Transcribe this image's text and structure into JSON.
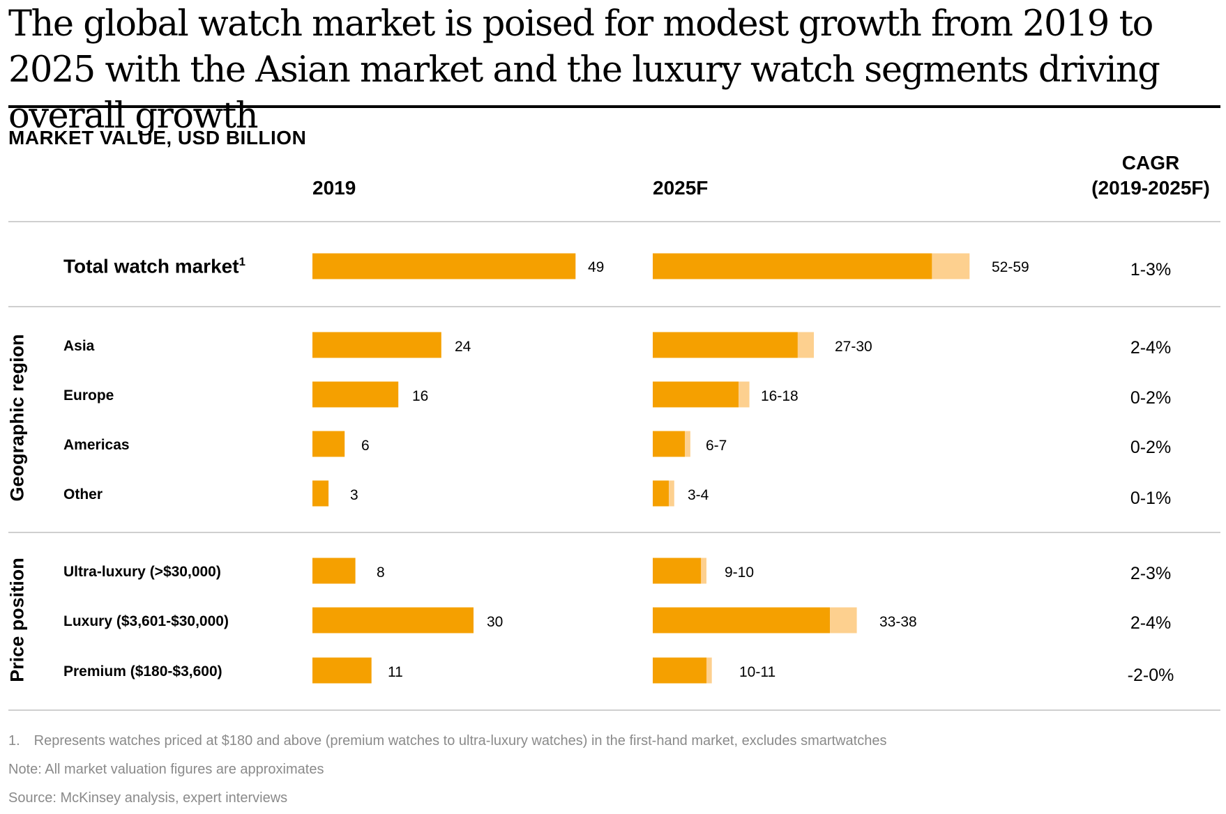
{
  "chart_data": {
    "type": "bar",
    "title": "The global watch market  is poised for modest growth from 2019 to 2025 with the Asian market and the luxury watch segments driving overall growth",
    "subtitle": "MARKET VALUE, USD BILLION",
    "columns": {
      "y2019": "2019",
      "y2025": "2025F",
      "cagr_line1": "CAGR",
      "cagr_line2": "(2019-2025F)"
    },
    "total": {
      "label": "Total watch market",
      "footnote_mark": "1",
      "v2019": 49,
      "v2019_label": "49",
      "low2025": 52,
      "high2025": 59,
      "v2025_label": "52-59",
      "cagr": "1-3%"
    },
    "groups": [
      {
        "label": "Geographic region",
        "rows": [
          {
            "label": "Asia",
            "v2019": 24,
            "v2019_label": "24",
            "low2025": 27,
            "high2025": 30,
            "v2025_label": "27-30",
            "cagr": "2-4%"
          },
          {
            "label": "Europe",
            "v2019": 16,
            "v2019_label": "16",
            "low2025": 16,
            "high2025": 18,
            "v2025_label": "16-18",
            "cagr": "0-2%"
          },
          {
            "label": "Americas",
            "v2019": 6,
            "v2019_label": "6",
            "low2025": 6,
            "high2025": 7,
            "v2025_label": "6-7",
            "cagr": "0-2%"
          },
          {
            "label": "Other",
            "v2019": 3,
            "v2019_label": "3",
            "low2025": 3,
            "high2025": 4,
            "v2025_label": "3-4",
            "cagr": "0-1%"
          }
        ]
      },
      {
        "label": "Price position",
        "rows": [
          {
            "label": "Ultra-luxury (>$30,000)",
            "v2019": 8,
            "v2019_label": "8",
            "low2025": 9,
            "high2025": 10,
            "v2025_label": "9-10",
            "cagr": "2-3%"
          },
          {
            "label": "Luxury ($3,601-$30,000)",
            "v2019": 30,
            "v2019_label": "30",
            "low2025": 33,
            "high2025": 38,
            "v2025_label": "33-38",
            "cagr": "2-4%"
          },
          {
            "label": "Premium ($180-$3,600)",
            "v2019": 11,
            "v2019_label": "11",
            "low2025": 10,
            "high2025": 11,
            "v2025_label": "10-11",
            "cagr": "-2-0%"
          }
        ]
      }
    ],
    "colors": {
      "bar": "#f5a000",
      "range": "#fdd08f",
      "rule": "#cfcfcf"
    }
  },
  "footnotes": {
    "note1": "1. Represents watches priced at $180 and above (premium watches to ultra-luxury watches) in the first-hand market, excludes smartwatches",
    "note": "Note: All market valuation figures are approximates",
    "source": "Source: McKinsey analysis, expert interviews"
  }
}
